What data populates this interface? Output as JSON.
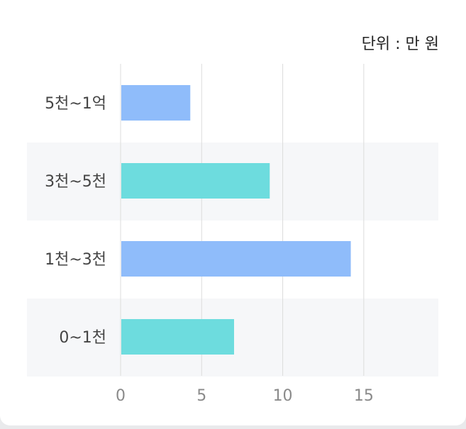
{
  "unit_label": "단위 : 만 원",
  "chart_data": {
    "type": "bar",
    "orientation": "horizontal",
    "title": "",
    "xlabel": "",
    "ylabel": "",
    "categories": [
      "5천~1억",
      "3천~5천",
      "1천~3천",
      "0~1천"
    ],
    "values": [
      4.3,
      9.2,
      14.2,
      7.0
    ],
    "xlim": [
      0,
      19.6
    ],
    "xticks": [
      "0",
      "5",
      "10",
      "15"
    ],
    "grid": true,
    "bar_colors": [
      "#8fbcfa",
      "#6ddcde",
      "#8fbcfa",
      "#6ddcde"
    ],
    "band_color": "#f6f7f9",
    "grid_color": "#dcdcdc"
  }
}
